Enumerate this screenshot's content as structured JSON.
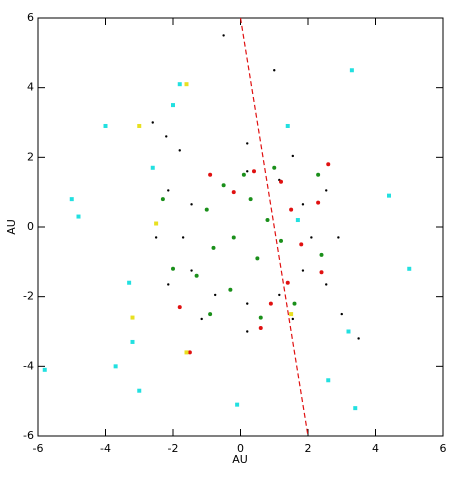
{
  "chart_data": {
    "type": "scatter",
    "xlabel": "AU",
    "ylabel": "AU",
    "xlim": [
      -6,
      6
    ],
    "ylim": [
      -6,
      6
    ],
    "xticks": [
      -6,
      -4,
      -2,
      0,
      2,
      4,
      6
    ],
    "yticks": [
      -6,
      -4,
      -2,
      0,
      2,
      4,
      6
    ],
    "series": [
      {
        "color": "#000000",
        "x": [
          2.1,
          1.85,
          1.15,
          0.2,
          -1.45,
          -1.7,
          -1.45,
          -0.75,
          0.2,
          1.15,
          1.85,
          2.9,
          2.54,
          1.55,
          0.2,
          -2.14,
          -2.5,
          -2.14,
          -1.15,
          0.2,
          1.55,
          2.54,
          -2.2,
          -2.6,
          -1.8,
          3.5,
          -0.5,
          1.0,
          3.0
        ],
        "y": [
          -0.3,
          0.65,
          1.35,
          1.6,
          0.65,
          -0.3,
          -1.25,
          -1.95,
          -2.2,
          -1.95,
          -1.25,
          -0.3,
          1.05,
          2.04,
          2.4,
          1.05,
          -0.3,
          -1.65,
          -2.64,
          -3.0,
          -2.64,
          -1.65,
          2.6,
          3.0,
          2.2,
          -3.2,
          5.5,
          4.5,
          -2.5
        ]
      },
      {
        "color": "#1a8f1a",
        "x": [
          -0.5,
          0.3,
          -1.0,
          0.8,
          -0.2,
          0.5,
          -0.8,
          1.2,
          -1.3,
          0.1,
          1.0,
          -0.3,
          1.6,
          -2.3,
          2.3,
          -0.9,
          0.6,
          -2.0,
          2.4
        ],
        "y": [
          1.2,
          0.8,
          0.5,
          0.2,
          -0.3,
          -0.9,
          -0.6,
          -0.4,
          -1.4,
          1.5,
          1.7,
          -1.8,
          -2.2,
          0.8,
          1.5,
          -2.5,
          -2.6,
          -1.2,
          -0.8
        ]
      },
      {
        "color": "#e01010",
        "x": [
          0.4,
          1.2,
          1.5,
          1.8,
          1.4,
          0.9,
          -0.2,
          -0.9,
          2.3,
          2.6,
          -1.8,
          -1.5,
          2.4,
          0.6
        ],
        "y": [
          1.6,
          1.3,
          0.5,
          -0.5,
          -1.6,
          -2.2,
          1.0,
          1.5,
          0.7,
          1.8,
          -2.3,
          -3.6,
          -1.3,
          -2.9
        ]
      },
      {
        "color": "#22e0e0",
        "x": [
          -5.8,
          -5.0,
          -4.8,
          -3.7,
          -3.2,
          -2.0,
          -1.8,
          -4.0,
          -3.3,
          3.3,
          4.4,
          5.0,
          3.4,
          1.4,
          -0.1,
          -3.0,
          -2.6,
          2.6,
          3.2,
          1.7
        ],
        "y": [
          -4.1,
          0.8,
          0.3,
          -4.0,
          -3.3,
          3.5,
          4.1,
          2.9,
          -1.6,
          4.5,
          0.9,
          -1.2,
          -5.2,
          2.9,
          -5.1,
          -4.7,
          1.7,
          -4.4,
          -3.0,
          0.2
        ]
      },
      {
        "color": "#e8e020",
        "x": [
          -3.0,
          -2.5,
          -3.2,
          -1.6,
          1.5,
          -1.6
        ],
        "y": [
          2.9,
          0.1,
          -2.6,
          -3.6,
          -2.5,
          4.1
        ]
      }
    ],
    "lines": [
      {
        "color": "#e01010",
        "dash": true,
        "x": [
          0,
          2
        ],
        "y": [
          6,
          -6
        ]
      }
    ]
  }
}
